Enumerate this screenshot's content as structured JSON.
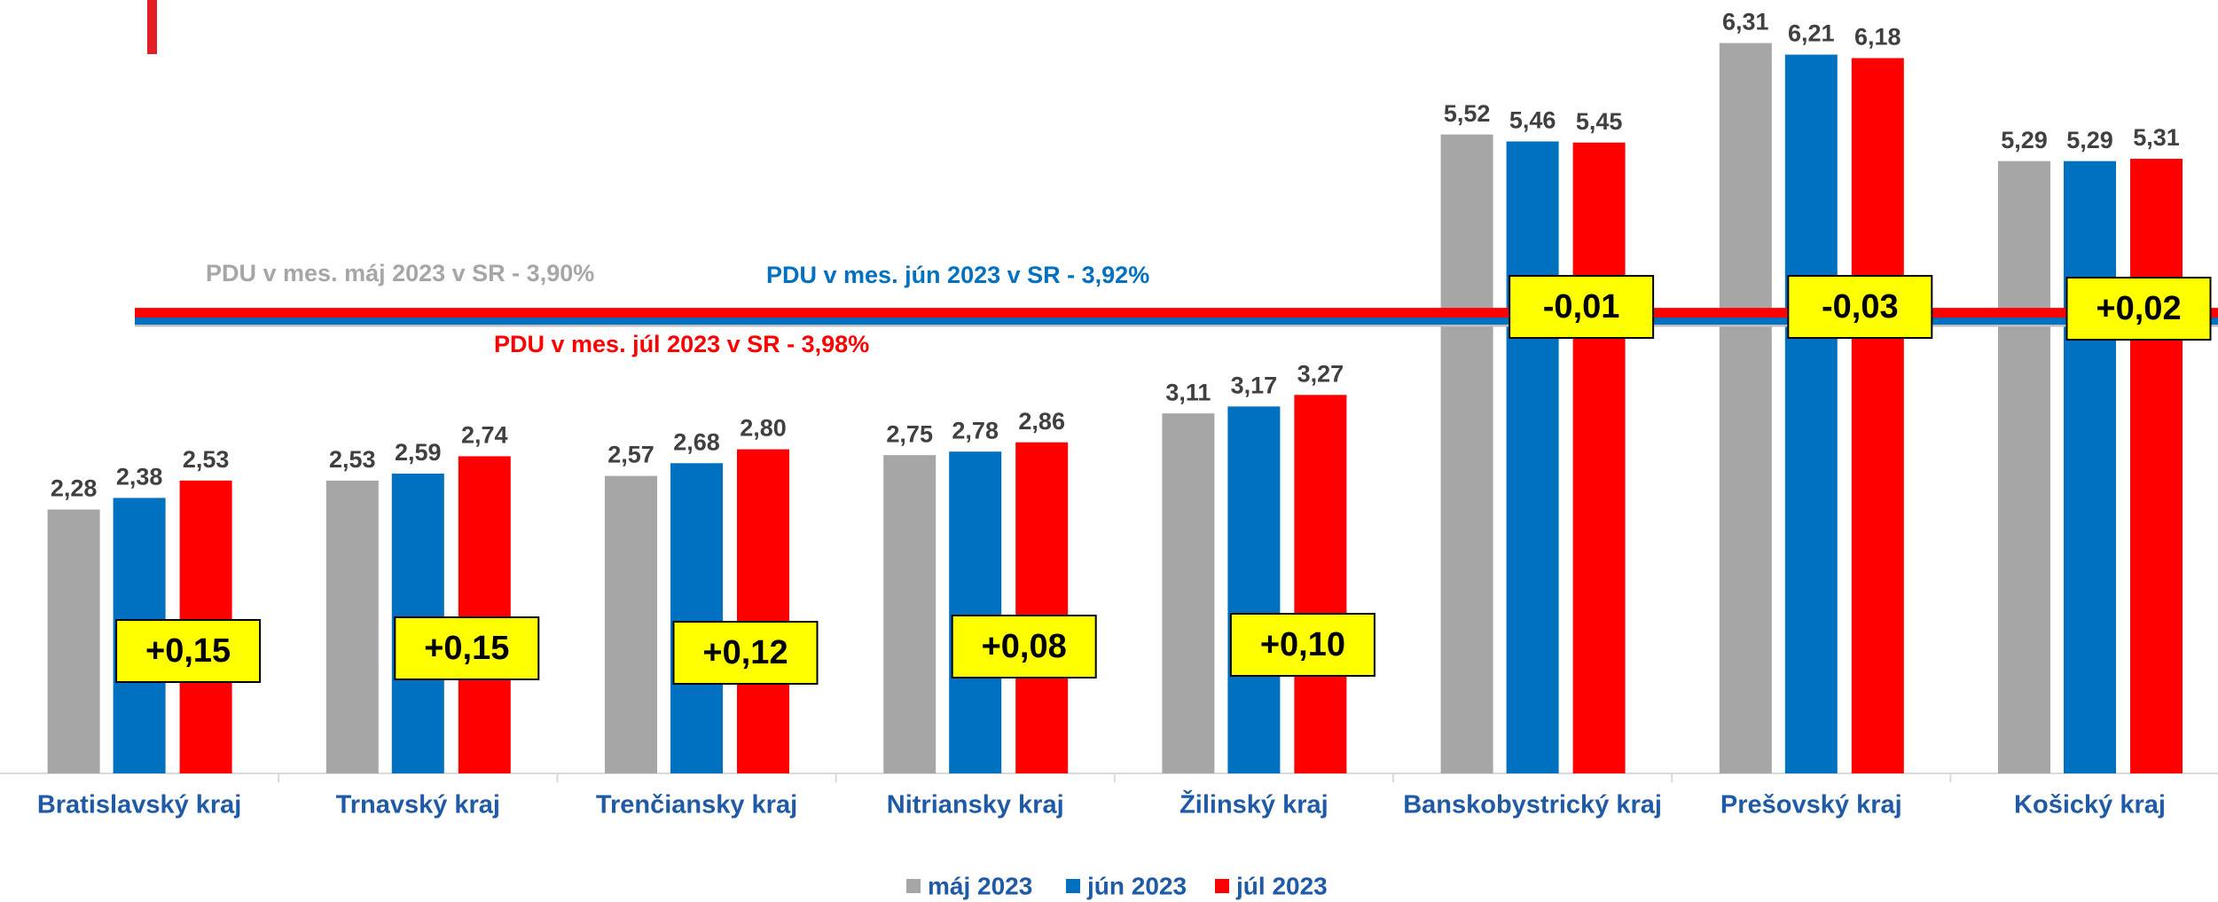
{
  "chart_data": {
    "type": "bar",
    "categories": [
      "Bratislavský kraj",
      "Trnavský kraj",
      "Trenčiansky kraj",
      "Nitriansky kraj",
      "Žilinský kraj",
      "Banskobystrický kraj",
      "Prešovský kraj",
      "Košický kraj"
    ],
    "series": [
      {
        "name": "máj 2023",
        "color": "#a6a6a6",
        "values": [
          2.28,
          2.53,
          2.57,
          2.75,
          3.11,
          5.52,
          6.31,
          5.29
        ],
        "value_labels": [
          "2,28",
          "2,53",
          "2,57",
          "2,75",
          "3,11",
          "5,52",
          "6,31",
          "5,29"
        ]
      },
      {
        "name": "jún 2023",
        "color": "#0070c0",
        "values": [
          2.38,
          2.59,
          2.68,
          2.78,
          3.17,
          5.46,
          6.21,
          5.29
        ],
        "value_labels": [
          "2,38",
          "2,59",
          "2,68",
          "2,78",
          "3,17",
          "5,46",
          "6,21",
          "5,29"
        ]
      },
      {
        "name": "júl 2023",
        "color": "#ff0000",
        "values": [
          2.53,
          2.74,
          2.8,
          2.86,
          3.27,
          5.45,
          6.18,
          5.31
        ],
        "value_labels": [
          "2,53",
          "2,74",
          "2,80",
          "2,86",
          "3,27",
          "5,45",
          "6,18",
          "5,31"
        ]
      }
    ],
    "reference_lines": [
      {
        "name": "PDU v mes. máj 2023 v SR - 3,90%",
        "value": 3.9,
        "color": "#bfbfbf"
      },
      {
        "name": "PDU v mes. jún 2023 v SR - 3,92%",
        "value": 3.92,
        "color": "#0070c0"
      },
      {
        "name": "PDU v mes. júl 2023 v SR - 3,98%",
        "value": 3.98,
        "color": "#ff0000"
      }
    ],
    "annotations": [
      "+0,15",
      "+0,15",
      "+0,12",
      "+0,08",
      "+0,10",
      "-0,01",
      "-0,03",
      "+0,02"
    ],
    "ylim": [
      0,
      7
    ],
    "grid": false,
    "legend": "bottom"
  }
}
